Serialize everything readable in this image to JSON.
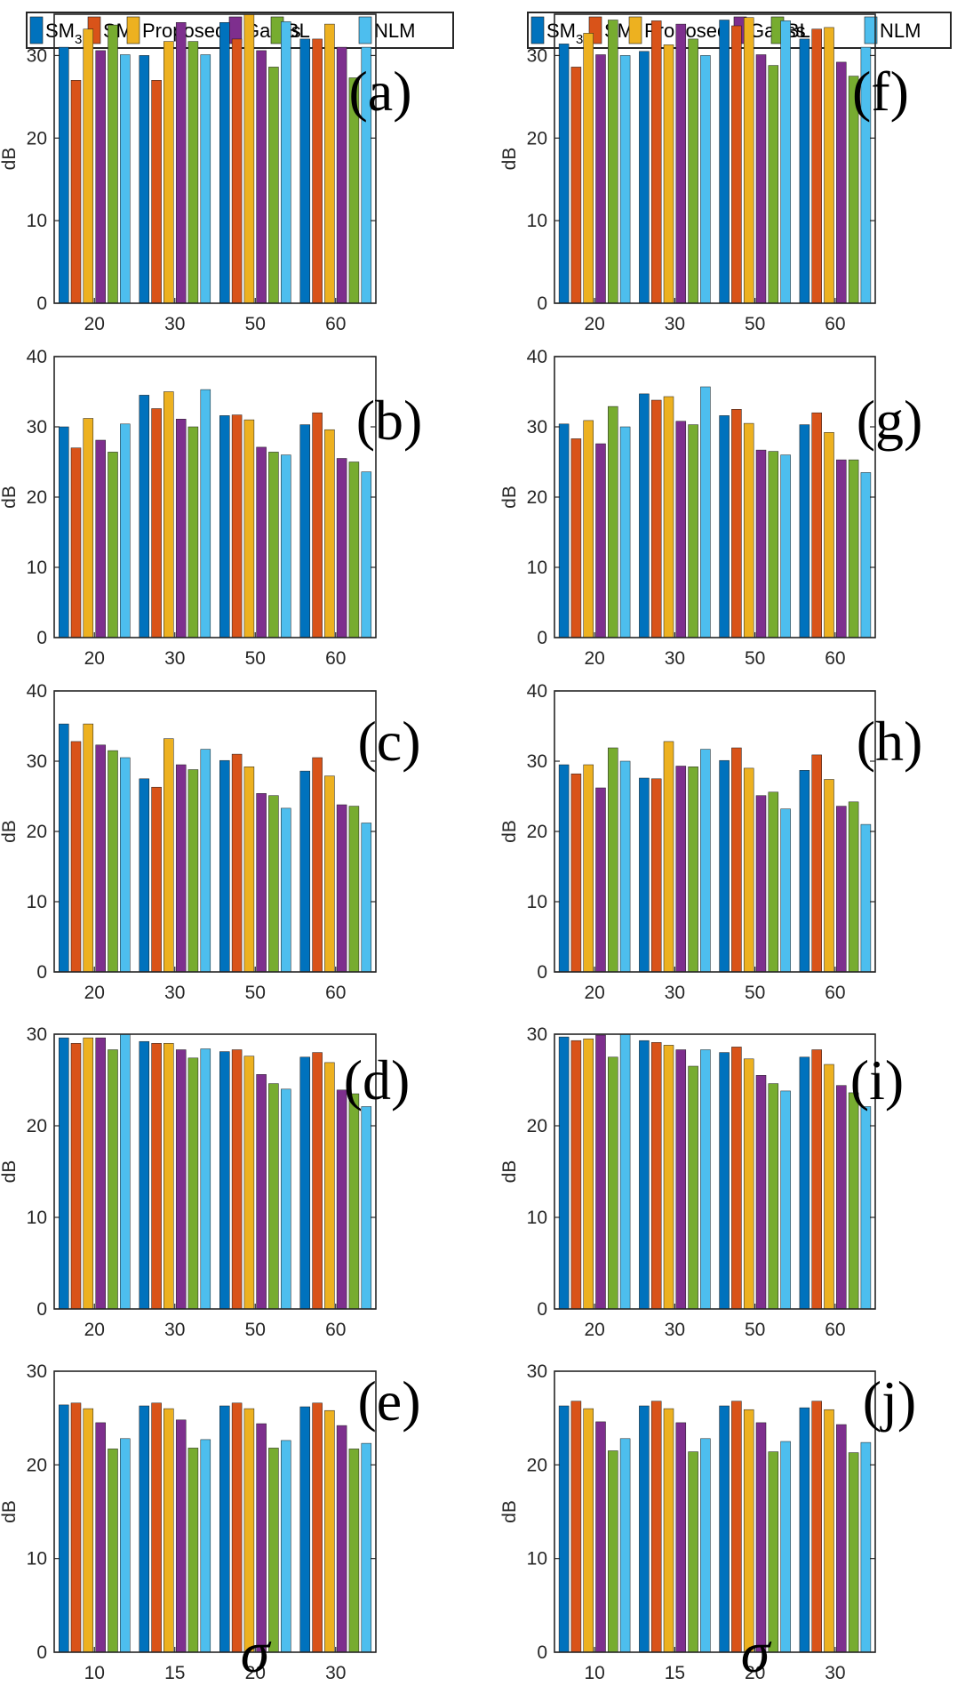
{
  "legend": {
    "entries": [
      {
        "label": "SM",
        "sub": "3",
        "color": "#0072BD"
      },
      {
        "label": "SM",
        "sub": "5",
        "color": "#D95319"
      },
      {
        "label": "Proposed",
        "sub": "",
        "color": "#EDB120"
      },
      {
        "label": "Gauss",
        "sub": "",
        "color": "#7E2F8E"
      },
      {
        "label": "BL",
        "sub": "",
        "color": "#77AC30"
      },
      {
        "label": "NLM",
        "sub": "",
        "color": "#4DBEEE"
      }
    ]
  },
  "xlabel": "σ",
  "chart_data": [
    {
      "type": "bar",
      "label": "(a)",
      "ylabel": "dB",
      "ylim": [
        0,
        35
      ],
      "yticks": [
        0,
        10,
        20,
        30
      ],
      "categories": [
        "20",
        "30",
        "50",
        "60"
      ],
      "series": [
        {
          "name": "SM3",
          "values": [
            31.0,
            30.0,
            34.0,
            32.0
          ]
        },
        {
          "name": "SM5",
          "values": [
            27.0,
            27.0,
            32.0,
            32.0
          ]
        },
        {
          "name": "Proposed",
          "values": [
            33.2,
            31.7,
            35.0,
            33.8
          ]
        },
        {
          "name": "Gauss",
          "values": [
            30.6,
            34.0,
            30.6,
            31.0
          ]
        },
        {
          "name": "BL",
          "values": [
            33.7,
            31.7,
            28.6,
            27.3
          ]
        },
        {
          "name": "NLM",
          "values": [
            30.1,
            30.1,
            34.1,
            31.0
          ]
        }
      ]
    },
    {
      "type": "bar",
      "label": "(b)",
      "ylabel": "dB",
      "ylim": [
        0,
        40
      ],
      "yticks": [
        0,
        10,
        20,
        30,
        40
      ],
      "categories": [
        "20",
        "30",
        "50",
        "60"
      ],
      "series": [
        {
          "name": "SM3",
          "values": [
            30.0,
            34.5,
            31.6,
            30.3
          ]
        },
        {
          "name": "SM5",
          "values": [
            27.0,
            32.6,
            31.7,
            32.0
          ]
        },
        {
          "name": "Proposed",
          "values": [
            31.2,
            35.0,
            31.0,
            29.6
          ]
        },
        {
          "name": "Gauss",
          "values": [
            28.1,
            31.1,
            27.1,
            25.5
          ]
        },
        {
          "name": "BL",
          "values": [
            26.4,
            30.0,
            26.4,
            25.0
          ]
        },
        {
          "name": "NLM",
          "values": [
            30.4,
            35.3,
            26.0,
            23.6
          ]
        }
      ]
    },
    {
      "type": "bar",
      "label": "(c)",
      "ylabel": "dB",
      "ylim": [
        0,
        40
      ],
      "yticks": [
        0,
        10,
        20,
        30,
        40
      ],
      "categories": [
        "20",
        "30",
        "50",
        "60"
      ],
      "series": [
        {
          "name": "SM3",
          "values": [
            35.3,
            27.5,
            30.1,
            28.6
          ]
        },
        {
          "name": "SM5",
          "values": [
            32.8,
            26.3,
            31.0,
            30.5
          ]
        },
        {
          "name": "Proposed",
          "values": [
            35.3,
            33.2,
            29.2,
            27.9
          ]
        },
        {
          "name": "Gauss",
          "values": [
            32.3,
            29.5,
            25.4,
            23.8
          ]
        },
        {
          "name": "BL",
          "values": [
            31.5,
            28.8,
            25.1,
            23.6
          ]
        },
        {
          "name": "NLM",
          "values": [
            30.5,
            31.7,
            23.3,
            21.2
          ]
        }
      ]
    },
    {
      "type": "bar",
      "label": "(d)",
      "ylabel": "dB",
      "ylim": [
        0,
        30
      ],
      "yticks": [
        0,
        10,
        20,
        30
      ],
      "categories": [
        "20",
        "30",
        "50",
        "60"
      ],
      "series": [
        {
          "name": "SM3",
          "values": [
            29.6,
            29.2,
            28.1,
            27.5
          ]
        },
        {
          "name": "SM5",
          "values": [
            29.0,
            29.0,
            28.3,
            28.0
          ]
        },
        {
          "name": "Proposed",
          "values": [
            29.6,
            29.0,
            27.6,
            26.9
          ]
        },
        {
          "name": "Gauss",
          "values": [
            29.6,
            28.3,
            25.6,
            23.9
          ]
        },
        {
          "name": "BL",
          "values": [
            28.3,
            27.4,
            24.6,
            23.5
          ]
        },
        {
          "name": "NLM",
          "values": [
            30.0,
            28.4,
            24.0,
            22.1
          ]
        }
      ]
    },
    {
      "type": "bar",
      "label": "(e)",
      "ylabel": "dB",
      "ylim": [
        0,
        30
      ],
      "yticks": [
        0,
        10,
        20,
        30
      ],
      "categories": [
        "10",
        "15",
        "20",
        "30"
      ],
      "series": [
        {
          "name": "SM3",
          "values": [
            26.4,
            26.3,
            26.3,
            26.2
          ]
        },
        {
          "name": "SM5",
          "values": [
            26.6,
            26.6,
            26.6,
            26.6
          ]
        },
        {
          "name": "Proposed",
          "values": [
            26.0,
            26.0,
            26.0,
            25.8
          ]
        },
        {
          "name": "Gauss",
          "values": [
            24.5,
            24.8,
            24.4,
            24.2
          ]
        },
        {
          "name": "BL",
          "values": [
            21.7,
            21.8,
            21.8,
            21.7
          ]
        },
        {
          "name": "NLM",
          "values": [
            22.8,
            22.7,
            22.6,
            22.3
          ]
        }
      ]
    },
    {
      "type": "bar",
      "label": "(f)",
      "ylabel": "dB",
      "ylim": [
        0,
        35
      ],
      "yticks": [
        0,
        10,
        20,
        30
      ],
      "categories": [
        "20",
        "30",
        "50",
        "60"
      ],
      "series": [
        {
          "name": "SM3",
          "values": [
            31.4,
            30.5,
            34.3,
            32.0
          ]
        },
        {
          "name": "SM5",
          "values": [
            28.6,
            34.2,
            33.6,
            33.2
          ]
        },
        {
          "name": "Proposed",
          "values": [
            32.7,
            31.3,
            34.6,
            33.4
          ]
        },
        {
          "name": "Gauss",
          "values": [
            30.1,
            33.8,
            30.1,
            29.2
          ]
        },
        {
          "name": "BL",
          "values": [
            34.3,
            32.0,
            28.8,
            27.5
          ]
        },
        {
          "name": "NLM",
          "values": [
            30.0,
            30.0,
            34.2,
            31.0
          ]
        }
      ]
    },
    {
      "type": "bar",
      "label": "(g)",
      "ylabel": "dB",
      "ylim": [
        0,
        40
      ],
      "yticks": [
        0,
        10,
        20,
        30,
        40
      ],
      "categories": [
        "20",
        "30",
        "50",
        "60"
      ],
      "series": [
        {
          "name": "SM3",
          "values": [
            30.4,
            34.7,
            31.6,
            30.3
          ]
        },
        {
          "name": "SM5",
          "values": [
            28.3,
            33.8,
            32.5,
            32.0
          ]
        },
        {
          "name": "Proposed",
          "values": [
            30.9,
            34.3,
            30.5,
            29.2
          ]
        },
        {
          "name": "Gauss",
          "values": [
            27.6,
            30.8,
            26.7,
            25.3
          ]
        },
        {
          "name": "BL",
          "values": [
            32.9,
            30.3,
            26.5,
            25.3
          ]
        },
        {
          "name": "NLM",
          "values": [
            30.0,
            35.7,
            26.0,
            23.5
          ]
        }
      ]
    },
    {
      "type": "bar",
      "label": "(h)",
      "ylabel": "dB",
      "ylim": [
        0,
        40
      ],
      "yticks": [
        0,
        10,
        20,
        30,
        40
      ],
      "categories": [
        "20",
        "30",
        "50",
        "60"
      ],
      "series": [
        {
          "name": "SM3",
          "values": [
            29.5,
            27.6,
            30.1,
            28.7
          ]
        },
        {
          "name": "SM5",
          "values": [
            28.2,
            27.5,
            31.9,
            30.9
          ]
        },
        {
          "name": "Proposed",
          "values": [
            29.5,
            32.8,
            29.0,
            27.4
          ]
        },
        {
          "name": "Gauss",
          "values": [
            26.2,
            29.3,
            25.1,
            23.6
          ]
        },
        {
          "name": "BL",
          "values": [
            31.9,
            29.2,
            25.6,
            24.2
          ]
        },
        {
          "name": "NLM",
          "values": [
            30.0,
            31.7,
            23.2,
            21.0
          ]
        }
      ]
    },
    {
      "type": "bar",
      "label": "(i)",
      "ylabel": "dB",
      "ylim": [
        0,
        30
      ],
      "yticks": [
        0,
        10,
        20,
        30
      ],
      "categories": [
        "20",
        "30",
        "50",
        "60"
      ],
      "series": [
        {
          "name": "SM3",
          "values": [
            29.7,
            29.3,
            28.0,
            27.5
          ]
        },
        {
          "name": "SM5",
          "values": [
            29.3,
            29.1,
            28.6,
            28.3
          ]
        },
        {
          "name": "Proposed",
          "values": [
            29.5,
            28.8,
            27.3,
            26.7
          ]
        },
        {
          "name": "Gauss",
          "values": [
            29.9,
            28.3,
            25.5,
            24.4
          ]
        },
        {
          "name": "BL",
          "values": [
            27.5,
            26.5,
            24.6,
            23.6
          ]
        },
        {
          "name": "NLM",
          "values": [
            30.0,
            28.3,
            23.8,
            22.1
          ]
        }
      ]
    },
    {
      "type": "bar",
      "label": "(j)",
      "ylabel": "dB",
      "ylim": [
        0,
        30
      ],
      "yticks": [
        0,
        10,
        20,
        30
      ],
      "categories": [
        "10",
        "15",
        "20",
        "30"
      ],
      "series": [
        {
          "name": "SM3",
          "values": [
            26.3,
            26.3,
            26.3,
            26.1
          ]
        },
        {
          "name": "SM5",
          "values": [
            26.8,
            26.8,
            26.8,
            26.8
          ]
        },
        {
          "name": "Proposed",
          "values": [
            26.0,
            26.0,
            25.9,
            25.9
          ]
        },
        {
          "name": "Gauss",
          "values": [
            24.6,
            24.5,
            24.5,
            24.3
          ]
        },
        {
          "name": "BL",
          "values": [
            21.5,
            21.4,
            21.4,
            21.3
          ]
        },
        {
          "name": "NLM",
          "values": [
            22.8,
            22.8,
            22.5,
            22.4
          ]
        }
      ]
    }
  ]
}
